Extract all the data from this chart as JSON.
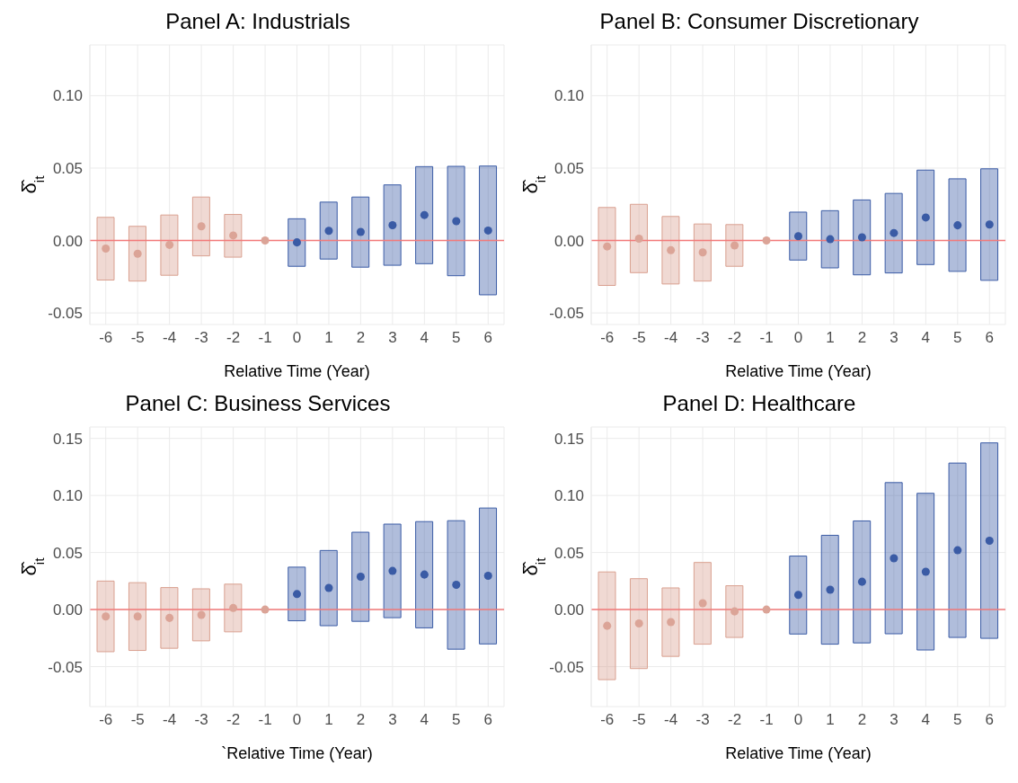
{
  "chart_data": [
    {
      "type": "bar",
      "title": "Panel A: Industrials",
      "xlabel": "Relative Time (Year)",
      "ylabel": "δ̂$_{it}$",
      "categories": [
        "-6",
        "-5",
        "-4",
        "-3",
        "-2",
        "-1",
        "0",
        "1",
        "2",
        "3",
        "4",
        "5",
        "6"
      ],
      "ylim": [
        -0.058,
        0.135
      ],
      "yticks": [
        {
          "value": -0.05,
          "label": "-0.05"
        },
        {
          "value": 0,
          "label": "0.00"
        },
        {
          "value": 0.05,
          "label": "0.05"
        },
        {
          "value": 0.1,
          "label": "0.10"
        }
      ],
      "grid": true,
      "marker": "circle",
      "ref_lines": [
        {
          "axis": "y",
          "value": 0,
          "color": "#f27a7a"
        }
      ],
      "series": [
        {
          "type": "bar",
          "base": [
            -0.0273,
            -0.028,
            -0.024,
            -0.0106,
            -0.0115,
            null,
            -0.0178,
            -0.0128,
            -0.0184,
            -0.0171,
            -0.016,
            -0.0243,
            -0.0375
          ],
          "values": [
            0.0433,
            0.0378,
            0.0416,
            0.0406,
            0.0295,
            null,
            0.0328,
            0.0393,
            0.0484,
            0.0555,
            0.067,
            0.0755,
            0.0889
          ],
          "colors": [
            "#d9a090",
            "#d9a090",
            "#d9a090",
            "#d9a090",
            "#d9a090",
            "#d9a090",
            "#3a5ba5",
            "#3a5ba5",
            "#3a5ba5",
            "#3a5ba5",
            "#3a5ba5",
            "#3a5ba5",
            "#3a5ba5"
          ]
        },
        {
          "type": "scatter",
          "values": [
            -0.0056,
            -0.0091,
            -0.003,
            0.0098,
            0.0035,
            0,
            -0.0013,
            0.0067,
            0.0059,
            0.0106,
            0.0176,
            0.0134,
            0.0069
          ],
          "colors": [
            "#dba497",
            "#dba497",
            "#dba497",
            "#dba497",
            "#dba497",
            "#dba497",
            "#3a5ba5",
            "#3a5ba5",
            "#3a5ba5",
            "#3a5ba5",
            "#3a5ba5",
            "#3a5ba5",
            "#3a5ba5"
          ]
        }
      ]
    },
    {
      "type": "bar",
      "title": "Panel B: Consumer Discretionary",
      "xlabel": "Relative Time (Year)",
      "ylabel": "δ̂$_{it}$",
      "categories": [
        "-6",
        "-5",
        "-4",
        "-3",
        "-2",
        "-1",
        "0",
        "1",
        "2",
        "3",
        "4",
        "5",
        "6"
      ],
      "ylim": [
        -0.058,
        0.135
      ],
      "yticks": [
        {
          "value": -0.05,
          "label": "-0.05"
        },
        {
          "value": 0,
          "label": "0.00"
        },
        {
          "value": 0.05,
          "label": "0.05"
        },
        {
          "value": 0.1,
          "label": "0.10"
        }
      ],
      "grid": true,
      "marker": "circle",
      "ref_lines": [
        {
          "axis": "y",
          "value": 0,
          "color": "#f27a7a"
        }
      ],
      "series": [
        {
          "type": "bar",
          "base": [
            -0.031,
            -0.0222,
            -0.03,
            -0.028,
            -0.0178,
            null,
            -0.0135,
            -0.0189,
            -0.0237,
            -0.0224,
            -0.0166,
            -0.0213,
            -0.0275
          ],
          "values": [
            0.0538,
            0.0472,
            0.0466,
            0.0394,
            0.0288,
            null,
            0.0331,
            0.0395,
            0.0517,
            0.0549,
            0.0652,
            0.0639,
            0.077
          ],
          "colors": [
            "#d9a090",
            "#d9a090",
            "#d9a090",
            "#d9a090",
            "#d9a090",
            "#d9a090",
            "#3a5ba5",
            "#3a5ba5",
            "#3a5ba5",
            "#3a5ba5",
            "#3a5ba5",
            "#3a5ba5",
            "#3a5ba5"
          ]
        },
        {
          "type": "scatter",
          "values": [
            -0.0041,
            0.0013,
            -0.0067,
            -0.0082,
            -0.0034,
            0,
            0.003,
            0.0009,
            0.0022,
            0.0052,
            0.0159,
            0.0105,
            0.011
          ],
          "colors": [
            "#dba497",
            "#dba497",
            "#dba497",
            "#dba497",
            "#dba497",
            "#dba497",
            "#3a5ba5",
            "#3a5ba5",
            "#3a5ba5",
            "#3a5ba5",
            "#3a5ba5",
            "#3a5ba5",
            "#3a5ba5"
          ]
        }
      ]
    },
    {
      "type": "bar",
      "title": "Panel C: Business Services",
      "xlabel": "`Relative Time (Year)",
      "ylabel": "δ̂$_{it}$",
      "categories": [
        "-6",
        "-5",
        "-4",
        "-3",
        "-2",
        "-1",
        "0",
        "1",
        "2",
        "3",
        "4",
        "5",
        "6"
      ],
      "ylim": [
        -0.085,
        0.16
      ],
      "yticks": [
        {
          "value": -0.05,
          "label": "-0.05"
        },
        {
          "value": 0,
          "label": "0.00"
        },
        {
          "value": 0.05,
          "label": "0.05"
        },
        {
          "value": 0.1,
          "label": "0.10"
        },
        {
          "value": 0.15,
          "label": "0.15"
        }
      ],
      "grid": true,
      "marker": "circle",
      "ref_lines": [
        {
          "axis": "y",
          "value": 0,
          "color": "#f27a7a"
        }
      ],
      "series": [
        {
          "type": "bar",
          "base": [
            -0.0369,
            -0.0358,
            -0.0339,
            -0.0274,
            -0.0195,
            null,
            -0.0098,
            -0.0141,
            -0.0103,
            -0.0071,
            -0.016,
            -0.0347,
            -0.0301
          ],
          "values": [
            0.0619,
            0.0594,
            0.0532,
            0.0456,
            0.0418,
            null,
            0.047,
            0.0659,
            0.0781,
            0.082,
            0.0931,
            0.1126,
            0.1191
          ],
          "colors": [
            "#d9a090",
            "#d9a090",
            "#d9a090",
            "#d9a090",
            "#d9a090",
            "#d9a090",
            "#3a5ba5",
            "#3a5ba5",
            "#3a5ba5",
            "#3a5ba5",
            "#3a5ba5",
            "#3a5ba5",
            "#3a5ba5"
          ]
        },
        {
          "type": "scatter",
          "values": [
            -0.006,
            -0.006,
            -0.0073,
            -0.0046,
            0.0014,
            0,
            0.0136,
            0.019,
            0.0288,
            0.0339,
            0.0307,
            0.0217,
            0.0296
          ],
          "colors": [
            "#dba497",
            "#dba497",
            "#dba497",
            "#dba497",
            "#dba497",
            "#dba497",
            "#3a5ba5",
            "#3a5ba5",
            "#3a5ba5",
            "#3a5ba5",
            "#3a5ba5",
            "#3a5ba5",
            "#3a5ba5"
          ]
        }
      ]
    },
    {
      "type": "bar",
      "title": "Panel D: Healthcare",
      "xlabel": "Relative Time (Year)",
      "ylabel": "δ̂$_{it}$",
      "categories": [
        "-6",
        "-5",
        "-4",
        "-3",
        "-2",
        "-1",
        "0",
        "1",
        "2",
        "3",
        "4",
        "5",
        "6"
      ],
      "ylim": [
        -0.085,
        0.16
      ],
      "yticks": [
        {
          "value": -0.05,
          "label": "-0.05"
        },
        {
          "value": 0,
          "label": "0.00"
        },
        {
          "value": 0.05,
          "label": "0.05"
        },
        {
          "value": 0.1,
          "label": "0.10"
        },
        {
          "value": 0.15,
          "label": "0.15"
        }
      ],
      "grid": true,
      "marker": "circle",
      "ref_lines": [
        {
          "axis": "y",
          "value": 0,
          "color": "#f27a7a"
        }
      ],
      "series": [
        {
          "type": "bar",
          "base": [
            -0.0614,
            -0.0517,
            -0.041,
            -0.0303,
            -0.0244,
            null,
            -0.0214,
            -0.0303,
            -0.0292,
            -0.0212,
            -0.0354,
            -0.0244,
            -0.0252
          ],
          "values": [
            0.0944,
            0.0788,
            0.06,
            0.0716,
            0.0453,
            null,
            0.0683,
            0.0954,
            0.1069,
            0.1325,
            0.1373,
            0.1528,
            0.1713
          ],
          "colors": [
            "#d9a090",
            "#d9a090",
            "#d9a090",
            "#d9a090",
            "#d9a090",
            "#d9a090",
            "#3a5ba5",
            "#3a5ba5",
            "#3a5ba5",
            "#3a5ba5",
            "#3a5ba5",
            "#3a5ba5",
            "#3a5ba5"
          ]
        },
        {
          "type": "scatter",
          "values": [
            -0.0142,
            -0.0121,
            -0.011,
            0.0056,
            -0.0016,
            0,
            0.0129,
            0.0174,
            0.0244,
            0.045,
            0.0332,
            0.052,
            0.0603
          ],
          "colors": [
            "#dba497",
            "#dba497",
            "#dba497",
            "#dba497",
            "#dba497",
            "#dba497",
            "#3a5ba5",
            "#3a5ba5",
            "#3a5ba5",
            "#3a5ba5",
            "#3a5ba5",
            "#3a5ba5",
            "#3a5ba5"
          ]
        }
      ]
    }
  ]
}
